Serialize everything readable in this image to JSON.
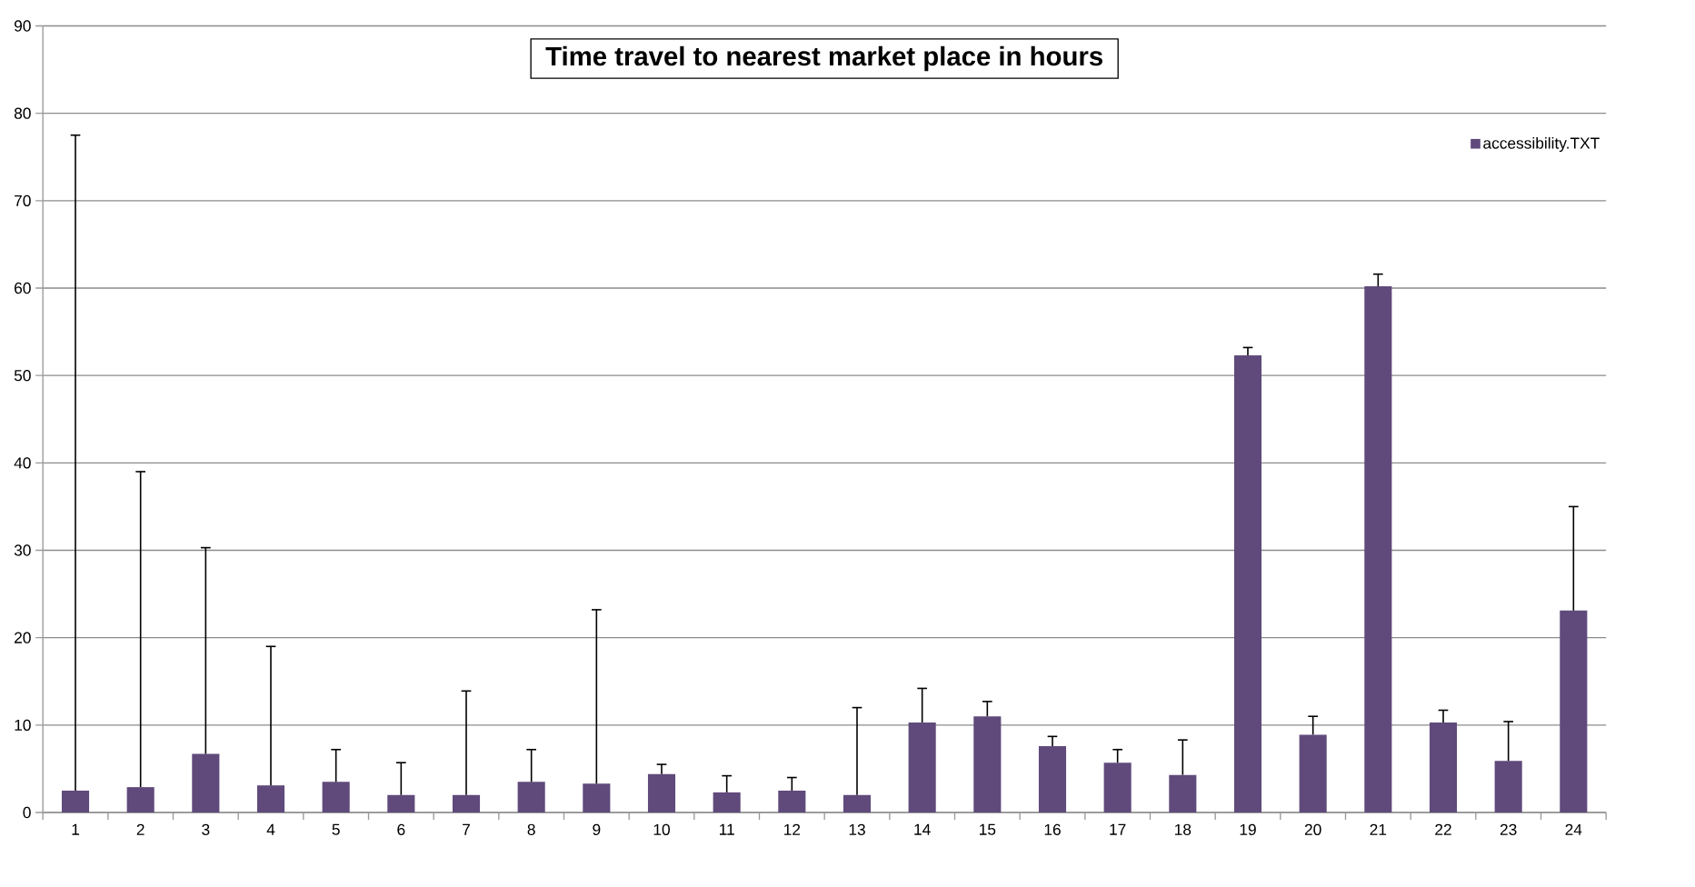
{
  "chart_data": {
    "type": "bar",
    "title": "Time travel to nearest market place in hours",
    "categories": [
      "1",
      "2",
      "3",
      "4",
      "5",
      "6",
      "7",
      "8",
      "9",
      "10",
      "11",
      "12",
      "13",
      "14",
      "15",
      "16",
      "17",
      "18",
      "19",
      "20",
      "21",
      "22",
      "23",
      "24"
    ],
    "series": [
      {
        "name": "accessibility.TXT",
        "color": "#604a7b",
        "values": [
          2.5,
          2.9,
          6.7,
          3.1,
          3.5,
          2.0,
          2.0,
          3.5,
          3.3,
          4.4,
          2.3,
          2.5,
          2.0,
          10.3,
          11.0,
          7.6,
          5.7,
          4.3,
          52.3,
          8.9,
          60.2,
          10.3,
          5.9,
          23.1
        ],
        "errors": [
          [
            2.5,
            77.5
          ],
          [
            2.9,
            39.0
          ],
          [
            6.7,
            30.3
          ],
          [
            3.1,
            19.0
          ],
          [
            3.5,
            7.2
          ],
          [
            2.0,
            5.7
          ],
          [
            2.0,
            13.9
          ],
          [
            3.5,
            7.2
          ],
          [
            3.3,
            23.2
          ],
          [
            4.4,
            5.5
          ],
          [
            2.3,
            4.2
          ],
          [
            2.5,
            4.0
          ],
          [
            2.0,
            12.0
          ],
          [
            10.3,
            14.2
          ],
          [
            11.0,
            12.7
          ],
          [
            7.6,
            8.7
          ],
          [
            5.7,
            7.2
          ],
          [
            4.3,
            8.3
          ],
          [
            52.3,
            53.2
          ],
          [
            8.9,
            11.0
          ],
          [
            60.2,
            61.6
          ],
          [
            10.3,
            11.7
          ],
          [
            5.9,
            10.4
          ],
          [
            23.1,
            35.0
          ]
        ]
      }
    ],
    "ylim": [
      0,
      90
    ],
    "yticks": [
      0,
      10,
      20,
      30,
      40,
      50,
      60,
      70,
      80,
      90
    ],
    "grid": "y",
    "legend": "top right"
  }
}
